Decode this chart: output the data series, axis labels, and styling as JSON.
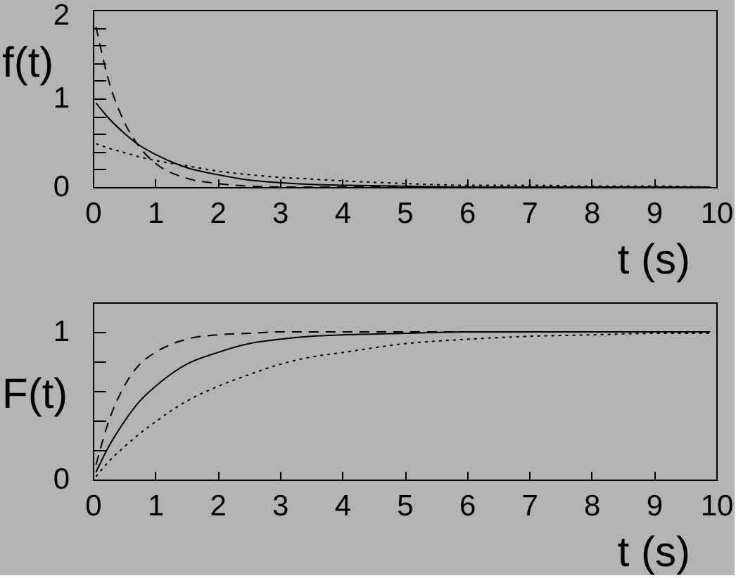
{
  "chart_data": [
    {
      "type": "line",
      "xlabel": "t (s)",
      "ylabel": "f(t)",
      "xlim": [
        0,
        10
      ],
      "xticks": [
        0,
        1,
        2,
        3,
        4,
        5,
        6,
        7,
        8,
        9,
        10
      ],
      "ylim": [
        0,
        2
      ],
      "yticks": [
        0,
        {
          "value": 0.2,
          "label": null
        },
        {
          "value": 0.4,
          "label": null
        },
        {
          "value": 0.6,
          "label": null
        },
        {
          "value": 0.8,
          "label": null
        },
        1,
        {
          "value": 1.2,
          "label": null
        },
        {
          "value": 1.4,
          "label": null
        },
        {
          "value": 1.6,
          "label": null
        },
        {
          "value": 1.8,
          "label": null
        },
        2
      ],
      "x": [
        0.05,
        0.25,
        0.5,
        0.75,
        1,
        1.5,
        2,
        2.5,
        3,
        3.5,
        4,
        5,
        6,
        7,
        8,
        9,
        9.9
      ],
      "series": [
        {
          "color": "#000000",
          "line_style": "solid",
          "values": [
            0.95,
            0.78,
            0.61,
            0.47,
            0.37,
            0.22,
            0.14,
            0.08,
            0.05,
            0.03,
            0.02,
            0.01,
            0.0,
            0.0,
            0.0,
            0.0,
            0.0
          ]
        },
        {
          "color": "#000000",
          "line_style": "dashed",
          "values": [
            1.81,
            1.21,
            0.74,
            0.45,
            0.27,
            0.1,
            0.04,
            0.01,
            0.0,
            0.0,
            0.0,
            0.0,
            0.0,
            0.0,
            0.0,
            0.0,
            0.0
          ]
        },
        {
          "color": "#000000",
          "line_style": "dotted",
          "values": [
            0.49,
            0.44,
            0.39,
            0.34,
            0.3,
            0.24,
            0.18,
            0.14,
            0.11,
            0.09,
            0.07,
            0.04,
            0.02,
            0.02,
            0.01,
            0.01,
            0.0
          ]
        }
      ]
    },
    {
      "type": "line",
      "xlabel": "t (s)",
      "ylabel": "F(t)",
      "xlim": [
        0,
        10
      ],
      "xticks": [
        0,
        1,
        2,
        3,
        4,
        5,
        6,
        7,
        8,
        9,
        10
      ],
      "ylim": [
        0,
        1.2
      ],
      "yticks": [
        0,
        {
          "value": 0.2,
          "label": null
        },
        {
          "value": 0.4,
          "label": null
        },
        {
          "value": 0.6,
          "label": null
        },
        {
          "value": 0.8,
          "label": null
        },
        1
      ],
      "x": [
        0.05,
        0.25,
        0.5,
        0.75,
        1,
        1.5,
        2,
        2.5,
        3,
        3.5,
        4,
        5,
        6,
        7,
        8,
        9,
        9.9
      ],
      "series": [
        {
          "color": "#000000",
          "line_style": "solid",
          "values": [
            0.05,
            0.22,
            0.39,
            0.53,
            0.63,
            0.78,
            0.86,
            0.92,
            0.95,
            0.97,
            0.98,
            0.99,
            1.0,
            1.0,
            1.0,
            1.0,
            1.0
          ]
        },
        {
          "color": "#000000",
          "line_style": "dashed",
          "values": [
            0.1,
            0.39,
            0.63,
            0.78,
            0.86,
            0.95,
            0.98,
            0.99,
            1.0,
            1.0,
            1.0,
            1.0,
            1.0,
            1.0,
            1.0,
            1.0,
            1.0
          ]
        },
        {
          "color": "#000000",
          "line_style": "dotted",
          "values": [
            0.02,
            0.12,
            0.22,
            0.31,
            0.39,
            0.53,
            0.63,
            0.71,
            0.78,
            0.83,
            0.86,
            0.92,
            0.95,
            0.97,
            0.98,
            0.99,
            0.99
          ]
        }
      ]
    }
  ]
}
